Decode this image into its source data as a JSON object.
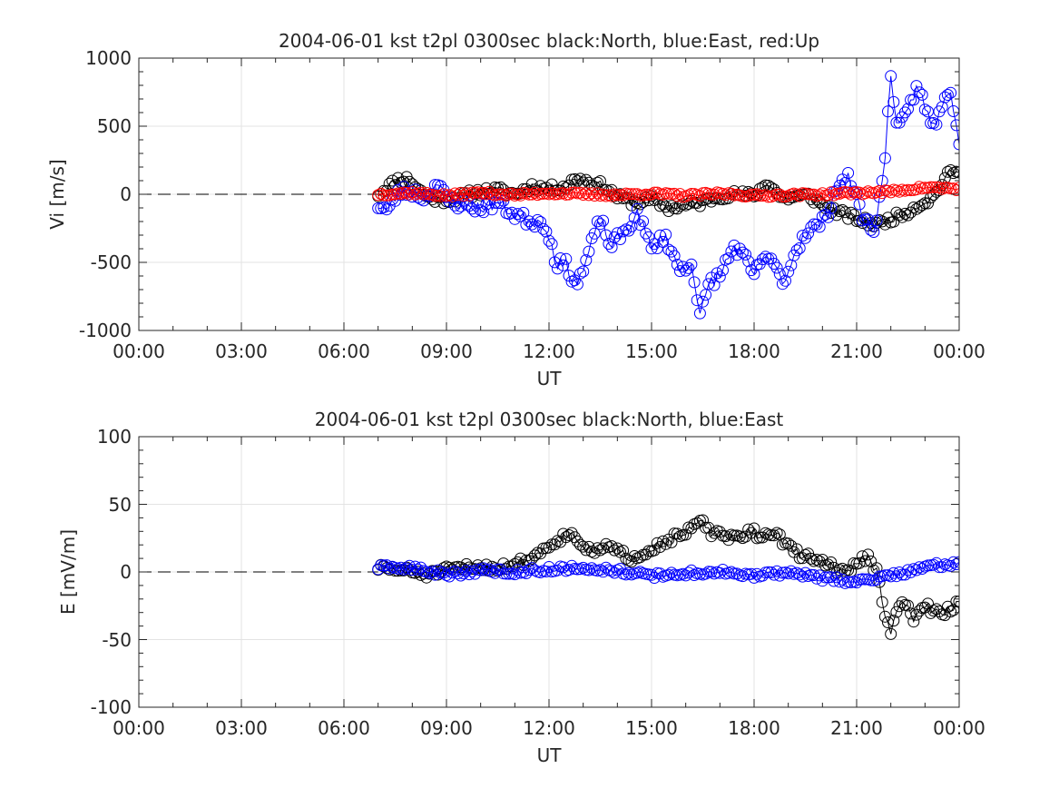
{
  "chart_data": [
    {
      "type": "line",
      "title": "2004-06-01 kst t2pl 0300sec black:North, blue:East, red:Up",
      "xlabel": "UT",
      "ylabel": "Vi [m/s]",
      "xlim": [
        0,
        24
      ],
      "ylim": [
        -1000,
        1000
      ],
      "xticks": [
        "00:00",
        "03:00",
        "06:00",
        "09:00",
        "12:00",
        "15:00",
        "18:00",
        "21:00",
        "00:00"
      ],
      "yticks": [
        "-1000",
        "-500",
        "0",
        "500",
        "1000"
      ],
      "grid": true,
      "reference_line": 0,
      "series": [
        {
          "color": "#000000",
          "keypoints": [
            [
              7.0,
              0
            ],
            [
              7.3,
              60
            ],
            [
              7.6,
              110
            ],
            [
              7.9,
              110
            ],
            [
              8.2,
              30
            ],
            [
              8.5,
              -30
            ],
            [
              9.0,
              -40
            ],
            [
              9.5,
              -10
            ],
            [
              10.0,
              20
            ],
            [
              10.5,
              30
            ],
            [
              11.0,
              0
            ],
            [
              11.5,
              60
            ],
            [
              12.0,
              40
            ],
            [
              12.5,
              60
            ],
            [
              12.8,
              120
            ],
            [
              13.2,
              90
            ],
            [
              13.6,
              60
            ],
            [
              14.0,
              -20
            ],
            [
              14.5,
              -60
            ],
            [
              15.0,
              -40
            ],
            [
              15.5,
              -100
            ],
            [
              16.0,
              -80
            ],
            [
              16.5,
              -60
            ],
            [
              17.0,
              -10
            ],
            [
              17.5,
              0
            ],
            [
              18.0,
              -10
            ],
            [
              18.4,
              90
            ],
            [
              18.8,
              -30
            ],
            [
              19.2,
              -20
            ],
            [
              19.6,
              -10
            ],
            [
              20.0,
              -80
            ],
            [
              20.4,
              -130
            ],
            [
              20.8,
              -160
            ],
            [
              21.2,
              -200
            ],
            [
              21.6,
              -220
            ],
            [
              22.0,
              -180
            ],
            [
              22.4,
              -140
            ],
            [
              22.8,
              -80
            ],
            [
              23.2,
              -30
            ],
            [
              23.5,
              80
            ],
            [
              23.8,
              180
            ],
            [
              24.0,
              140
            ]
          ],
          "noise": 30,
          "seed": 11
        },
        {
          "color": "#0000ff",
          "keypoints": [
            [
              7.0,
              -80
            ],
            [
              7.3,
              -120
            ],
            [
              7.6,
              20
            ],
            [
              8.0,
              20
            ],
            [
              8.4,
              -30
            ],
            [
              8.7,
              90
            ],
            [
              9.0,
              -40
            ],
            [
              9.5,
              -80
            ],
            [
              10.0,
              -100
            ],
            [
              10.5,
              -60
            ],
            [
              11.0,
              -150
            ],
            [
              11.5,
              -200
            ],
            [
              11.8,
              -200
            ],
            [
              12.0,
              -300
            ],
            [
              12.2,
              -500
            ],
            [
              12.5,
              -520
            ],
            [
              12.8,
              -660
            ],
            [
              13.0,
              -560
            ],
            [
              13.2,
              -400
            ],
            [
              13.5,
              -180
            ],
            [
              13.8,
              -380
            ],
            [
              14.2,
              -280
            ],
            [
              14.6,
              -140
            ],
            [
              15.0,
              -400
            ],
            [
              15.4,
              -300
            ],
            [
              15.8,
              -560
            ],
            [
              16.2,
              -500
            ],
            [
              16.4,
              -920
            ],
            [
              16.7,
              -640
            ],
            [
              17.0,
              -600
            ],
            [
              17.4,
              -380
            ],
            [
              17.7,
              -460
            ],
            [
              18.0,
              -600
            ],
            [
              18.3,
              -440
            ],
            [
              18.6,
              -540
            ],
            [
              18.9,
              -640
            ],
            [
              19.2,
              -420
            ],
            [
              19.5,
              -280
            ],
            [
              19.8,
              -240
            ],
            [
              20.1,
              -180
            ],
            [
              20.4,
              60
            ],
            [
              20.8,
              120
            ],
            [
              21.2,
              -180
            ],
            [
              21.5,
              -260
            ],
            [
              21.8,
              140
            ],
            [
              22.0,
              900
            ],
            [
              22.2,
              460
            ],
            [
              22.5,
              600
            ],
            [
              22.8,
              820
            ],
            [
              23.0,
              620
            ],
            [
              23.3,
              480
            ],
            [
              23.6,
              760
            ],
            [
              23.8,
              700
            ],
            [
              24.0,
              400
            ]
          ],
          "noise": 45,
          "seed": 23
        },
        {
          "color": "#ff0000",
          "keypoints": [
            [
              7.0,
              0
            ],
            [
              8.0,
              10
            ],
            [
              9.0,
              -10
            ],
            [
              10.0,
              10
            ],
            [
              11.0,
              -5
            ],
            [
              12.0,
              10
            ],
            [
              13.0,
              0
            ],
            [
              14.0,
              -5
            ],
            [
              15.0,
              5
            ],
            [
              16.0,
              -10
            ],
            [
              17.0,
              5
            ],
            [
              18.0,
              -10
            ],
            [
              19.0,
              -5
            ],
            [
              20.0,
              0
            ],
            [
              21.0,
              10
            ],
            [
              22.0,
              20
            ],
            [
              23.0,
              50
            ],
            [
              24.0,
              40
            ]
          ],
          "noise": 12,
          "seed": 37
        }
      ]
    },
    {
      "type": "line",
      "title": "2004-06-01 kst t2pl 0300sec black:North, blue:East",
      "xlabel": "UT",
      "ylabel": "E [mV/m]",
      "xlim": [
        0,
        24
      ],
      "ylim": [
        -100,
        100
      ],
      "xticks": [
        "00:00",
        "03:00",
        "06:00",
        "09:00",
        "12:00",
        "15:00",
        "18:00",
        "21:00",
        "00:00"
      ],
      "yticks": [
        "-100",
        "-50",
        "0",
        "50",
        "100"
      ],
      "grid": true,
      "reference_line": 0,
      "series": [
        {
          "color": "#000000",
          "keypoints": [
            [
              7.0,
              3
            ],
            [
              7.5,
              2
            ],
            [
              8.0,
              0
            ],
            [
              8.5,
              -2
            ],
            [
              9.0,
              1
            ],
            [
              9.5,
              3
            ],
            [
              10.0,
              4
            ],
            [
              10.5,
              3
            ],
            [
              11.0,
              6
            ],
            [
              11.5,
              10
            ],
            [
              12.0,
              20
            ],
            [
              12.4,
              26
            ],
            [
              12.7,
              28
            ],
            [
              13.0,
              20
            ],
            [
              13.3,
              12
            ],
            [
              13.6,
              20
            ],
            [
              14.0,
              15
            ],
            [
              14.4,
              10
            ],
            [
              14.8,
              15
            ],
            [
              15.2,
              20
            ],
            [
              15.6,
              25
            ],
            [
              16.0,
              28
            ],
            [
              16.4,
              38
            ],
            [
              16.8,
              28
            ],
            [
              17.2,
              26
            ],
            [
              17.6,
              24
            ],
            [
              17.9,
              32
            ],
            [
              18.2,
              25
            ],
            [
              18.6,
              30
            ],
            [
              19.0,
              18
            ],
            [
              19.4,
              12
            ],
            [
              19.8,
              10
            ],
            [
              20.2,
              5
            ],
            [
              20.6,
              0
            ],
            [
              21.0,
              5
            ],
            [
              21.3,
              12
            ],
            [
              21.6,
              0
            ],
            [
              21.8,
              -30
            ],
            [
              22.0,
              -45
            ],
            [
              22.3,
              -20
            ],
            [
              22.7,
              -35
            ],
            [
              23.0,
              -25
            ],
            [
              23.3,
              -30
            ],
            [
              23.6,
              -30
            ],
            [
              24.0,
              -22
            ]
          ],
          "noise": 3,
          "seed": 51
        },
        {
          "color": "#0000ff",
          "keypoints": [
            [
              7.0,
              3
            ],
            [
              8.0,
              3
            ],
            [
              9.0,
              -2
            ],
            [
              10.0,
              1
            ],
            [
              11.0,
              0
            ],
            [
              12.0,
              2
            ],
            [
              13.0,
              3
            ],
            [
              14.0,
              1
            ],
            [
              15.0,
              -3
            ],
            [
              16.0,
              -1
            ],
            [
              17.0,
              0
            ],
            [
              18.0,
              -3
            ],
            [
              19.0,
              0
            ],
            [
              20.0,
              -5
            ],
            [
              21.0,
              -7
            ],
            [
              22.0,
              -3
            ],
            [
              23.0,
              4
            ],
            [
              24.0,
              6
            ]
          ],
          "noise": 2,
          "seed": 63
        }
      ]
    }
  ]
}
